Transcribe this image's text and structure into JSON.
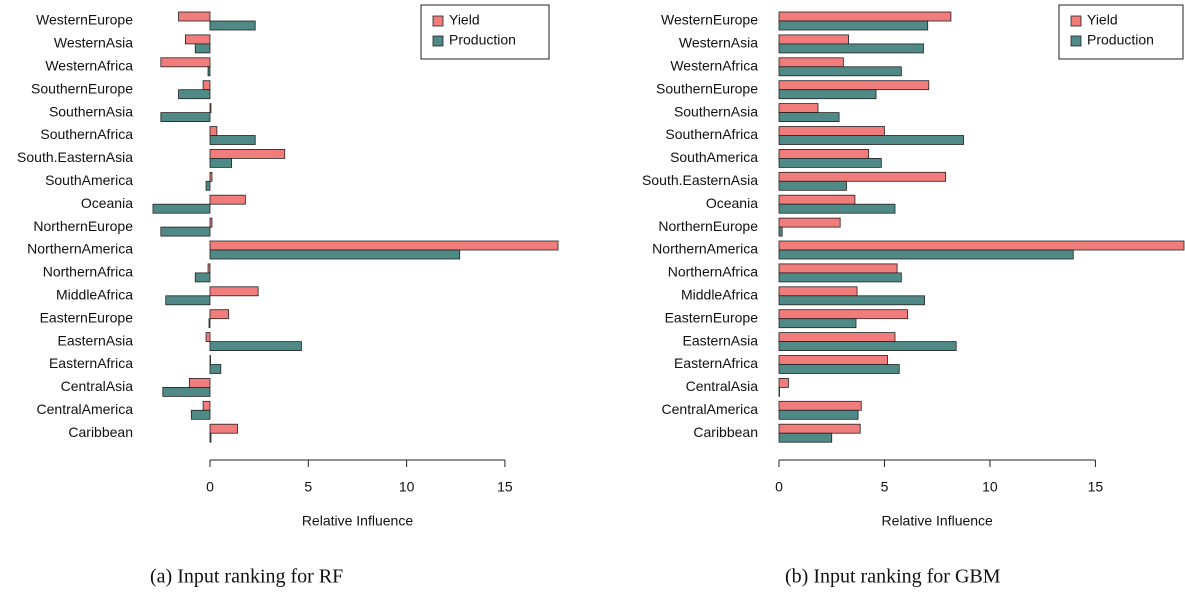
{
  "chart_data": [
    {
      "type": "hbar",
      "caption": "(a) Input ranking for RF",
      "xlabel": "Relative Influence",
      "categories": [
        "WesternEurope",
        "WesternAsia",
        "WesternAfrica",
        "SouthernEurope",
        "SouthernAsia",
        "SouthernAfrica",
        "South.EasternAsia",
        "SouthAmerica",
        "Oceania",
        "NorthernEurope",
        "NorthernAmerica",
        "NorthernAfrica",
        "MiddleAfrica",
        "EasternEurope",
        "EasternAsia",
        "EasternAfrica",
        "CentralAsia",
        "CentralAmerica",
        "Caribbean"
      ],
      "series": [
        {
          "name": "Yield",
          "color": "#f07c7c",
          "values": [
            -1.6,
            -1.25,
            -2.5,
            -0.35,
            0.05,
            0.35,
            3.8,
            0.1,
            1.8,
            0.1,
            17.7,
            -0.1,
            2.45,
            0.95,
            -0.2,
            0.02,
            -1.05,
            -0.35,
            1.4
          ]
        },
        {
          "name": "Production",
          "color": "#4f8a87",
          "values": [
            2.3,
            -0.75,
            -0.1,
            -1.6,
            -2.5,
            2.3,
            1.1,
            -0.2,
            -2.9,
            -2.5,
            12.7,
            -0.75,
            -2.25,
            -0.05,
            4.65,
            0.55,
            -2.4,
            -0.95,
            0.05
          ]
        }
      ],
      "xlim": [
        -3,
        17.8
      ],
      "xticks": [
        0,
        5,
        10,
        15
      ],
      "legend": "top-right",
      "grid": false
    },
    {
      "type": "hbar",
      "caption": "(b) Input ranking for GBM",
      "xlabel": "Relative Influence",
      "categories": [
        "WesternEurope",
        "WesternAsia",
        "WesternAfrica",
        "SouthernEurope",
        "SouthernAsia",
        "SouthernAfrica",
        "SouthAmerica",
        "South.EasternAsia",
        "Oceania",
        "NorthernEurope",
        "NorthernAmerica",
        "NorthernAfrica",
        "MiddleAfrica",
        "EasternEurope",
        "EasternAsia",
        "EasternAfrica",
        "CentralAsia",
        "CentralAmerica",
        "Caribbean"
      ],
      "series": [
        {
          "name": "Yield",
          "color": "#f07c7c",
          "values": [
            8.15,
            3.3,
            3.05,
            7.1,
            1.85,
            5.0,
            4.25,
            7.9,
            3.6,
            2.9,
            19.2,
            5.6,
            3.7,
            6.1,
            5.5,
            5.15,
            0.45,
            3.9,
            3.85
          ]
        },
        {
          "name": "Production",
          "color": "#4f8a87",
          "values": [
            7.05,
            6.85,
            5.8,
            4.6,
            2.85,
            8.75,
            4.85,
            3.2,
            5.5,
            0.15,
            13.95,
            5.8,
            6.9,
            3.65,
            8.4,
            5.7,
            0.02,
            3.75,
            2.5
          ]
        }
      ],
      "xlim": [
        0,
        19.2
      ],
      "xticks": [
        0,
        5,
        10,
        15
      ],
      "legend": "top-right",
      "grid": false
    }
  ]
}
